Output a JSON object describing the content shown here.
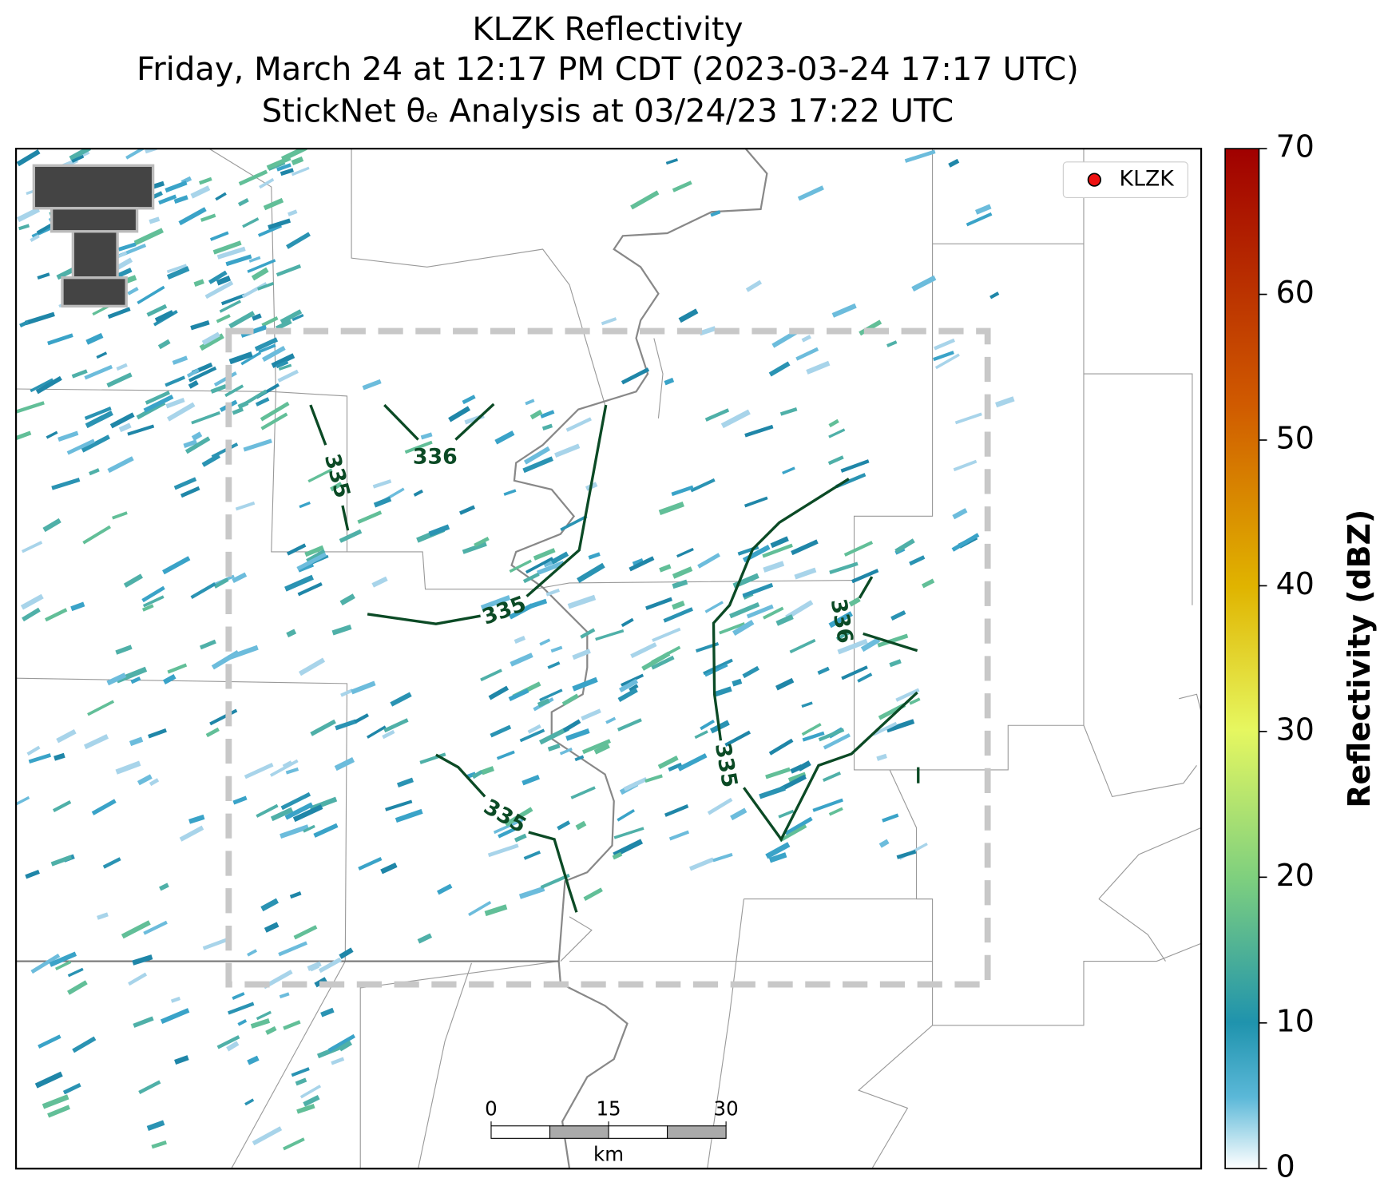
{
  "map": {
    "title": [
      "KLZK Reflectivity",
      "Friday, March 24 at 12:17 PM CDT (2023-03-24 17:17 UTC)",
      "StickNet θₑ Analysis at 03/24/23 17:22 UTC"
    ],
    "legend": {
      "label": "KLZK",
      "color": "#ee1111"
    },
    "colorbar": {
      "label": "Reflectivity (dBZ)",
      "lim": [
        0,
        70
      ],
      "ticks": [
        0,
        10,
        20,
        30,
        40,
        50,
        60,
        70
      ]
    },
    "contour_labels": [
      335,
      336,
      335,
      335,
      335,
      336
    ],
    "contour_color": "#0b4a25",
    "scale_bar": {
      "ticks": [
        0,
        15,
        30
      ],
      "unit": "km"
    }
  }
}
